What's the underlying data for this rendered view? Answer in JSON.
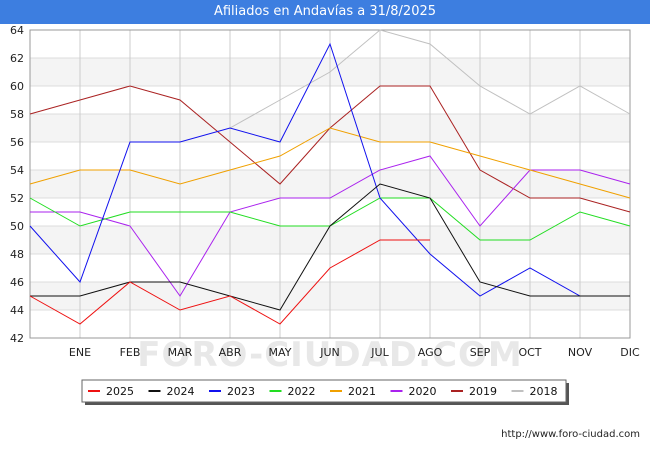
{
  "chart_data": {
    "type": "line",
    "title": "Afiliados en Andavías a 31/8/2025",
    "categories": [
      "",
      "ENE",
      "FEB",
      "MAR",
      "ABR",
      "MAY",
      "JUN",
      "JUL",
      "AGO",
      "SEP",
      "OCT",
      "NOV",
      "DIC"
    ],
    "ylim": [
      42,
      64
    ],
    "yticks": [
      42,
      44,
      46,
      48,
      50,
      52,
      54,
      56,
      58,
      60,
      62,
      64
    ],
    "series": [
      {
        "name": "2025",
        "color": "#ee1111",
        "values": [
          45,
          43,
          46,
          44,
          45,
          43,
          47,
          49,
          49,
          null,
          null,
          null,
          null
        ]
      },
      {
        "name": "2024",
        "color": "#111111",
        "values": [
          45,
          45,
          46,
          46,
          45,
          44,
          50,
          53,
          52,
          46,
          45,
          45,
          45
        ]
      },
      {
        "name": "2023",
        "color": "#1111ee",
        "values": [
          50,
          46,
          56,
          56,
          57,
          56,
          63,
          52,
          48,
          45,
          47,
          45,
          45
        ]
      },
      {
        "name": "2022",
        "color": "#22dd22",
        "values": [
          52,
          50,
          51,
          51,
          51,
          50,
          50,
          52,
          52,
          49,
          49,
          51,
          50
        ]
      },
      {
        "name": "2021",
        "color": "#f0a000",
        "values": [
          53,
          54,
          54,
          53,
          54,
          55,
          57,
          56,
          56,
          55,
          54,
          53,
          52
        ]
      },
      {
        "name": "2020",
        "color": "#aa22ee",
        "values": [
          51,
          51,
          50,
          45,
          51,
          52,
          52,
          54,
          55,
          50,
          54,
          54,
          53
        ]
      },
      {
        "name": "2019",
        "color": "#aa2222",
        "values": [
          58,
          59,
          60,
          59,
          56,
          53,
          57,
          60,
          60,
          54,
          52,
          52,
          51
        ]
      },
      {
        "name": "2018",
        "color": "#c0c0c0",
        "values": [
          null,
          null,
          null,
          null,
          57,
          59,
          61,
          64,
          63,
          60,
          58,
          60,
          58
        ]
      }
    ],
    "watermark": "FORO-CIUDAD.COM"
  },
  "footer": "http://www.foro-ciudad.com"
}
